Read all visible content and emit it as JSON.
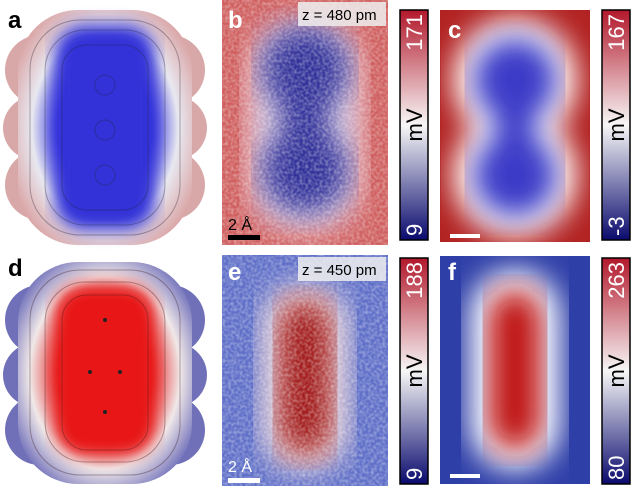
{
  "panels": [
    {
      "label": "a"
    },
    {
      "label": "b",
      "annotation": "z = 480 pm",
      "scale_bar": "2 Å"
    },
    {
      "label": "c"
    },
    {
      "label": "d"
    },
    {
      "label": "e",
      "annotation": "z = 450 pm",
      "scale_bar": "2 Å"
    },
    {
      "label": "f"
    }
  ],
  "colorbars": [
    {
      "max": 171,
      "min": 9,
      "unit": "mV"
    },
    {
      "max": 167,
      "min": -3,
      "unit": "mV"
    },
    {
      "max": 188,
      "min": 9,
      "unit": "mV"
    },
    {
      "max": 263,
      "min": 80,
      "unit": "mV"
    }
  ]
}
